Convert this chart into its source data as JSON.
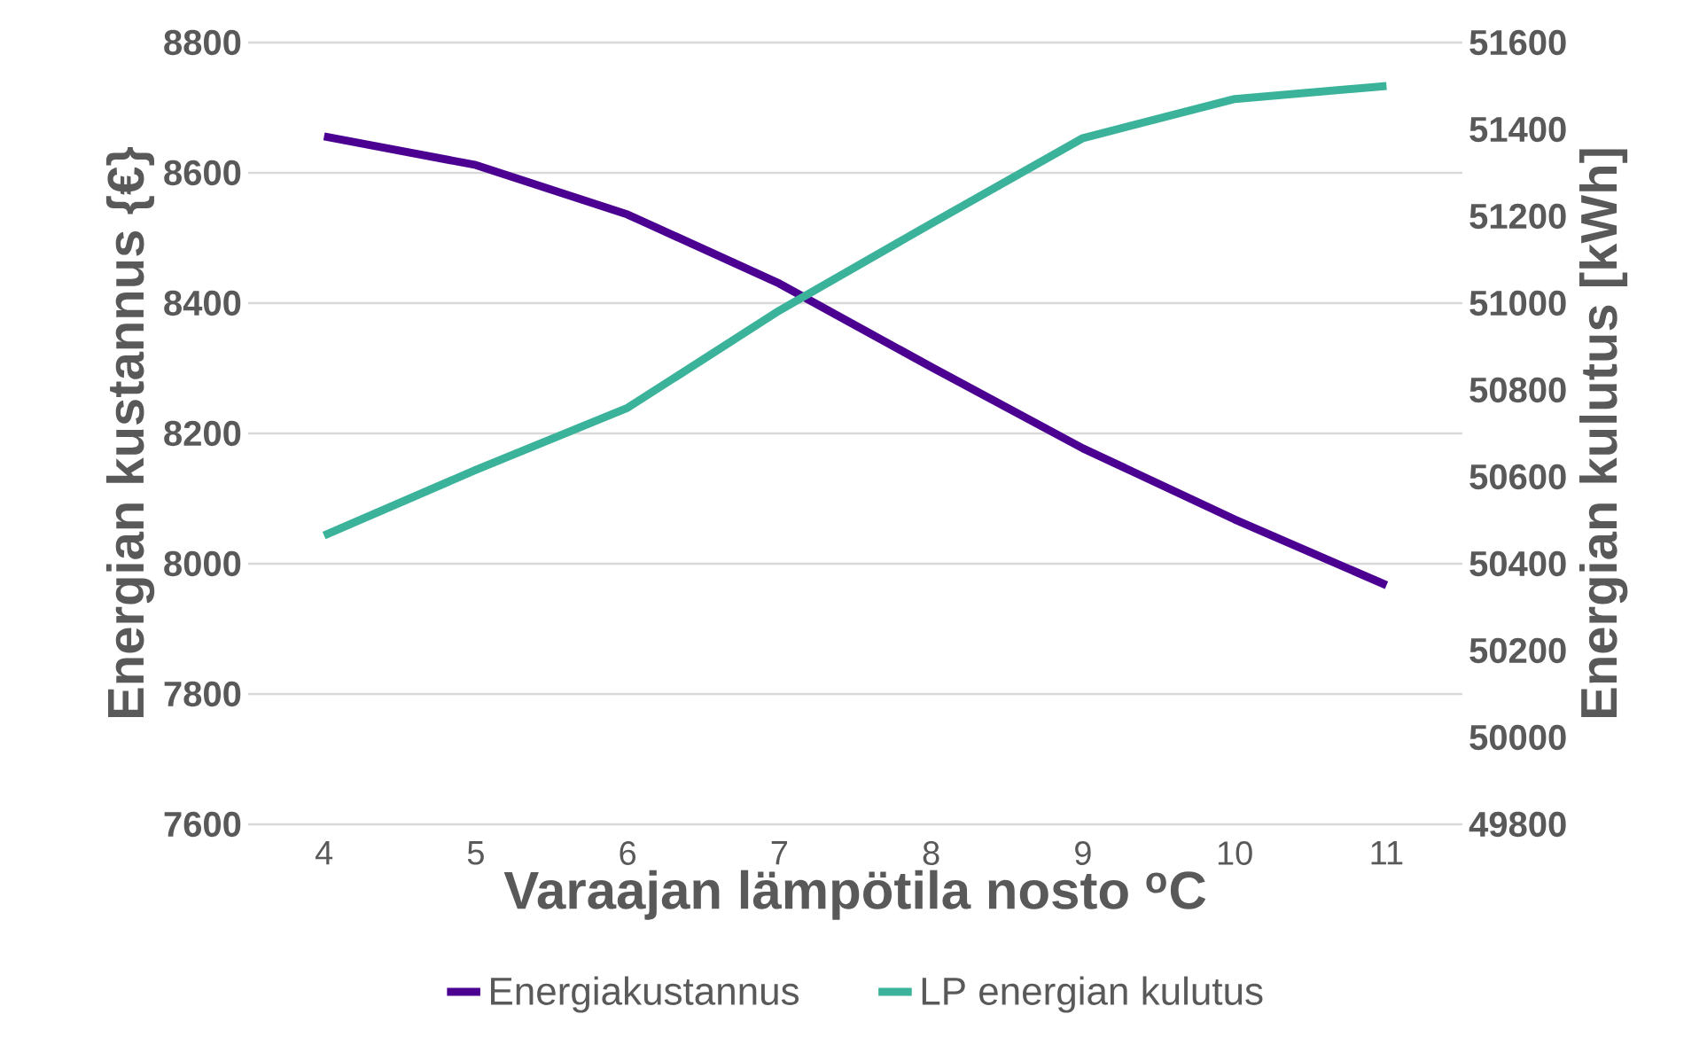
{
  "chart_data": {
    "type": "line",
    "xlabel": "Varaajan lämpötila nosto $^{o}$C",
    "ylabel": "Energian kustannus {€}",
    "y2label": "Energian kulutus [kWh]",
    "categories": [
      "4",
      "5",
      "6",
      "7",
      "8",
      "9",
      "10",
      "11"
    ],
    "series": [
      {
        "name": "Energiakustannus",
        "color": "#4b0092",
        "values": [
          8656,
          8612,
          8536,
          8430,
          8302,
          8177,
          8068,
          7967
        ]
      },
      {
        "name": "LP energian kulutus",
        "color": "#3bb39a",
        "axis": "y2",
        "values": [
          50465,
          50616,
          50759,
          50983,
          51183,
          51380,
          51470,
          51500
        ]
      }
    ],
    "ylim": [
      7600,
      8800
    ],
    "yticks": [
      7600,
      7800,
      8000,
      8200,
      8400,
      8600,
      8800
    ],
    "y2lim": [
      49800,
      51600
    ],
    "y2ticks": [
      49800,
      50000,
      50200,
      50400,
      50600,
      50800,
      51000,
      51200,
      51400,
      51600
    ],
    "grid": "y",
    "legend": "bottom",
    "marker": "none",
    "line_style": "solid"
  }
}
